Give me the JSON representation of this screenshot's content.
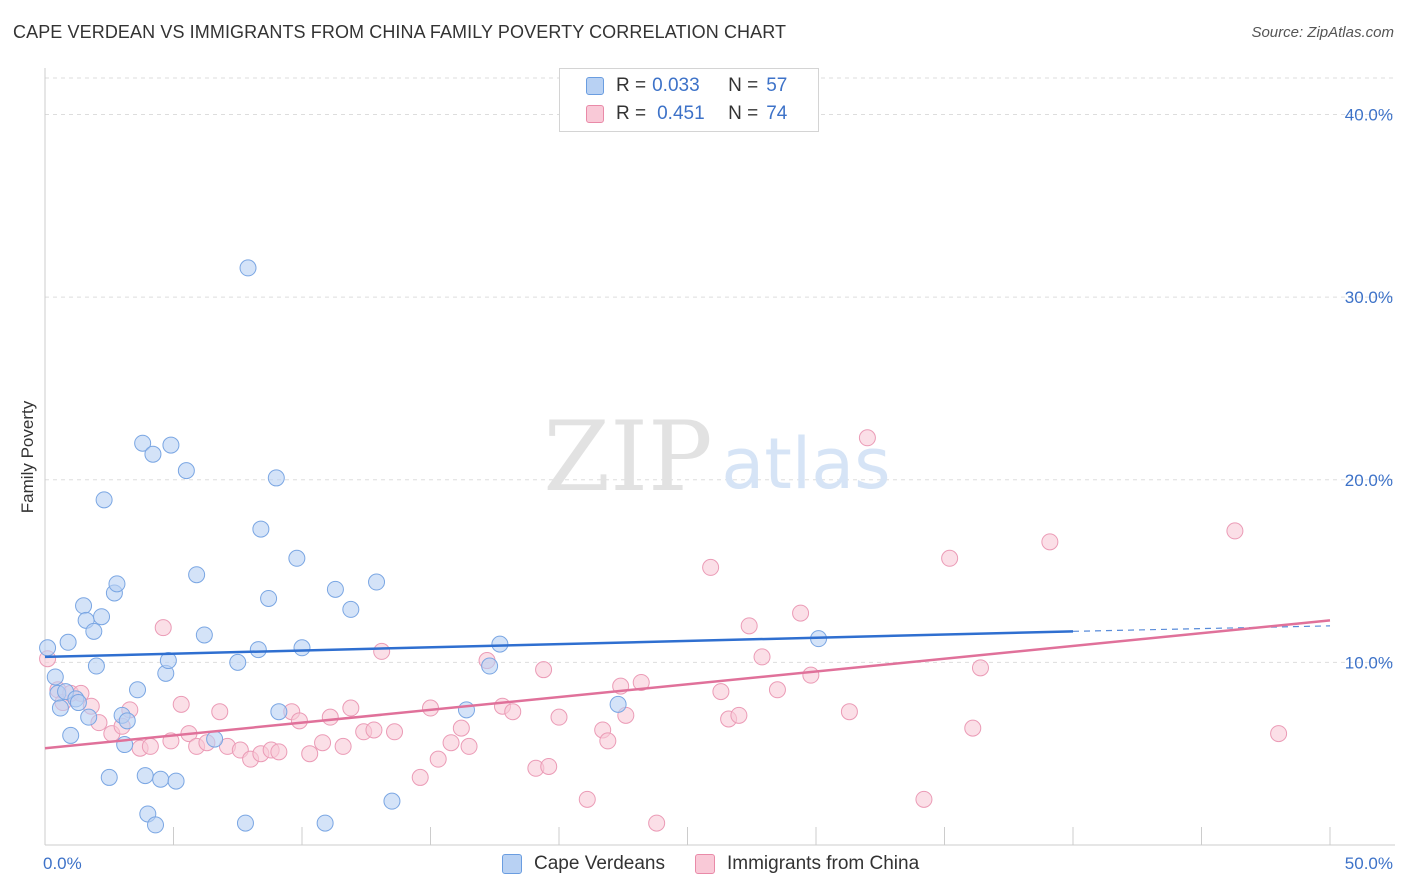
{
  "title": "CAPE VERDEAN VS IMMIGRANTS FROM CHINA FAMILY POVERTY CORRELATION CHART",
  "source": "Source: ZipAtlas.com",
  "watermark": {
    "zip": "ZIP",
    "atlas": "atlas"
  },
  "legend": {
    "r_label": "R =",
    "n_label": "N =",
    "rows": [
      {
        "r": "0.033",
        "n": "57",
        "color": "#b8d1f3",
        "border": "#6a9de0"
      },
      {
        "r": "0.451",
        "n": "74",
        "color": "#f9c9d7",
        "border": "#e98aa8"
      }
    ]
  },
  "bottom_legend": [
    {
      "label": "Cape Verdeans",
      "color": "#b8d1f3",
      "border": "#6a9de0"
    },
    {
      "label": "Immigrants from China",
      "color": "#f9c9d7",
      "border": "#e98aa8"
    }
  ],
  "colors": {
    "blue_line": "#2f6fd0",
    "pink_line": "#e0719a",
    "blue_fill": "#b8d1f3",
    "blue_stroke": "#7aa6e3",
    "pink_fill": "#f9c9d7",
    "pink_stroke": "#eb9bb6",
    "tick": "#3d72c8"
  },
  "chart_data": {
    "type": "scatter",
    "title": "CAPE VERDEAN VS IMMIGRANTS FROM CHINA FAMILY POVERTY CORRELATION CHART",
    "xlabel": "",
    "ylabel": "Family Poverty",
    "xlim": [
      0,
      50
    ],
    "ylim": [
      0,
      42
    ],
    "x_tick_labels": [
      {
        "value": 0,
        "label": "0.0%"
      },
      {
        "value": 50,
        "label": "50.0%"
      }
    ],
    "y_tick_labels": [
      {
        "value": 10,
        "label": "10.0%"
      },
      {
        "value": 20,
        "label": "20.0%"
      },
      {
        "value": 30,
        "label": "30.0%"
      },
      {
        "value": 40,
        "label": "40.0%"
      }
    ],
    "series": [
      {
        "name": "Cape Verdeans",
        "r": 0.033,
        "n": 57,
        "trend": {
          "x0": 0,
          "y0": 10.3,
          "x1": 40,
          "y1": 11.7,
          "dash_to": 50,
          "dash_y": 12.0
        },
        "points": [
          [
            0.1,
            10.8
          ],
          [
            0.4,
            9.2
          ],
          [
            0.5,
            8.3
          ],
          [
            0.6,
            7.5
          ],
          [
            0.8,
            8.4
          ],
          [
            0.9,
            11.1
          ],
          [
            1.0,
            6.0
          ],
          [
            1.2,
            8.0
          ],
          [
            1.3,
            7.8
          ],
          [
            1.5,
            13.1
          ],
          [
            1.6,
            12.3
          ],
          [
            1.7,
            7.0
          ],
          [
            1.9,
            11.7
          ],
          [
            2.0,
            9.8
          ],
          [
            2.2,
            12.5
          ],
          [
            2.3,
            18.9
          ],
          [
            2.5,
            3.7
          ],
          [
            2.7,
            13.8
          ],
          [
            2.8,
            14.3
          ],
          [
            3.0,
            7.1
          ],
          [
            3.1,
            5.5
          ],
          [
            3.2,
            6.8
          ],
          [
            3.6,
            8.5
          ],
          [
            3.8,
            22.0
          ],
          [
            3.9,
            3.8
          ],
          [
            4.0,
            1.7
          ],
          [
            4.2,
            21.4
          ],
          [
            4.3,
            1.1
          ],
          [
            4.5,
            3.6
          ],
          [
            4.7,
            9.4
          ],
          [
            4.8,
            10.1
          ],
          [
            4.9,
            21.9
          ],
          [
            5.1,
            3.5
          ],
          [
            5.5,
            20.5
          ],
          [
            5.9,
            14.8
          ],
          [
            6.2,
            11.5
          ],
          [
            6.6,
            5.8
          ],
          [
            7.5,
            10.0
          ],
          [
            7.8,
            1.2
          ],
          [
            7.9,
            31.6
          ],
          [
            8.3,
            10.7
          ],
          [
            8.4,
            17.3
          ],
          [
            8.7,
            13.5
          ],
          [
            9.0,
            20.1
          ],
          [
            9.1,
            7.3
          ],
          [
            9.8,
            15.7
          ],
          [
            10.0,
            10.8
          ],
          [
            10.9,
            1.2
          ],
          [
            11.3,
            14.0
          ],
          [
            11.9,
            12.9
          ],
          [
            12.9,
            14.4
          ],
          [
            13.5,
            2.4
          ],
          [
            16.4,
            7.4
          ],
          [
            17.3,
            9.8
          ],
          [
            17.7,
            11.0
          ],
          [
            22.3,
            7.7
          ],
          [
            30.1,
            11.3
          ]
        ]
      },
      {
        "name": "Immigrants from China",
        "r": 0.451,
        "n": 74,
        "trend": {
          "x0": 0,
          "y0": 5.3,
          "x1": 50,
          "y1": 12.3
        },
        "points": [
          [
            0.1,
            10.2
          ],
          [
            0.5,
            8.5
          ],
          [
            0.7,
            7.8
          ],
          [
            1.0,
            8.3
          ],
          [
            1.4,
            8.3
          ],
          [
            1.8,
            7.6
          ],
          [
            2.1,
            6.7
          ],
          [
            2.6,
            6.1
          ],
          [
            3.0,
            6.5
          ],
          [
            3.3,
            7.4
          ],
          [
            3.7,
            5.3
          ],
          [
            4.1,
            5.4
          ],
          [
            4.6,
            11.9
          ],
          [
            4.9,
            5.7
          ],
          [
            5.3,
            7.7
          ],
          [
            5.6,
            6.1
          ],
          [
            5.9,
            5.4
          ],
          [
            6.3,
            5.6
          ],
          [
            6.8,
            7.3
          ],
          [
            7.1,
            5.4
          ],
          [
            7.6,
            5.2
          ],
          [
            8.0,
            4.7
          ],
          [
            8.4,
            5.0
          ],
          [
            8.8,
            5.2
          ],
          [
            9.1,
            5.1
          ],
          [
            9.6,
            7.3
          ],
          [
            9.9,
            6.8
          ],
          [
            10.3,
            5.0
          ],
          [
            10.8,
            5.6
          ],
          [
            11.1,
            7.0
          ],
          [
            11.6,
            5.4
          ],
          [
            11.9,
            7.5
          ],
          [
            12.4,
            6.2
          ],
          [
            12.8,
            6.3
          ],
          [
            13.1,
            10.6
          ],
          [
            13.6,
            6.2
          ],
          [
            14.6,
            3.7
          ],
          [
            15.0,
            7.5
          ],
          [
            15.3,
            4.7
          ],
          [
            15.8,
            5.6
          ],
          [
            16.2,
            6.4
          ],
          [
            16.5,
            5.4
          ],
          [
            17.2,
            10.1
          ],
          [
            17.8,
            7.6
          ],
          [
            18.2,
            7.3
          ],
          [
            19.1,
            4.2
          ],
          [
            19.4,
            9.6
          ],
          [
            19.6,
            4.3
          ],
          [
            20.0,
            7.0
          ],
          [
            21.1,
            2.5
          ],
          [
            21.7,
            6.3
          ],
          [
            21.9,
            5.7
          ],
          [
            22.4,
            8.7
          ],
          [
            22.6,
            7.1
          ],
          [
            23.2,
            8.9
          ],
          [
            23.8,
            1.2
          ],
          [
            25.9,
            15.2
          ],
          [
            26.3,
            8.4
          ],
          [
            26.6,
            6.9
          ],
          [
            27.0,
            7.1
          ],
          [
            27.4,
            12.0
          ],
          [
            27.9,
            10.3
          ],
          [
            28.5,
            8.5
          ],
          [
            29.4,
            12.7
          ],
          [
            29.8,
            9.3
          ],
          [
            31.3,
            7.3
          ],
          [
            32.0,
            22.3
          ],
          [
            34.2,
            2.5
          ],
          [
            35.2,
            15.7
          ],
          [
            36.1,
            6.4
          ],
          [
            36.4,
            9.7
          ],
          [
            39.1,
            16.6
          ],
          [
            46.3,
            17.2
          ],
          [
            48.0,
            6.1
          ]
        ]
      }
    ]
  }
}
